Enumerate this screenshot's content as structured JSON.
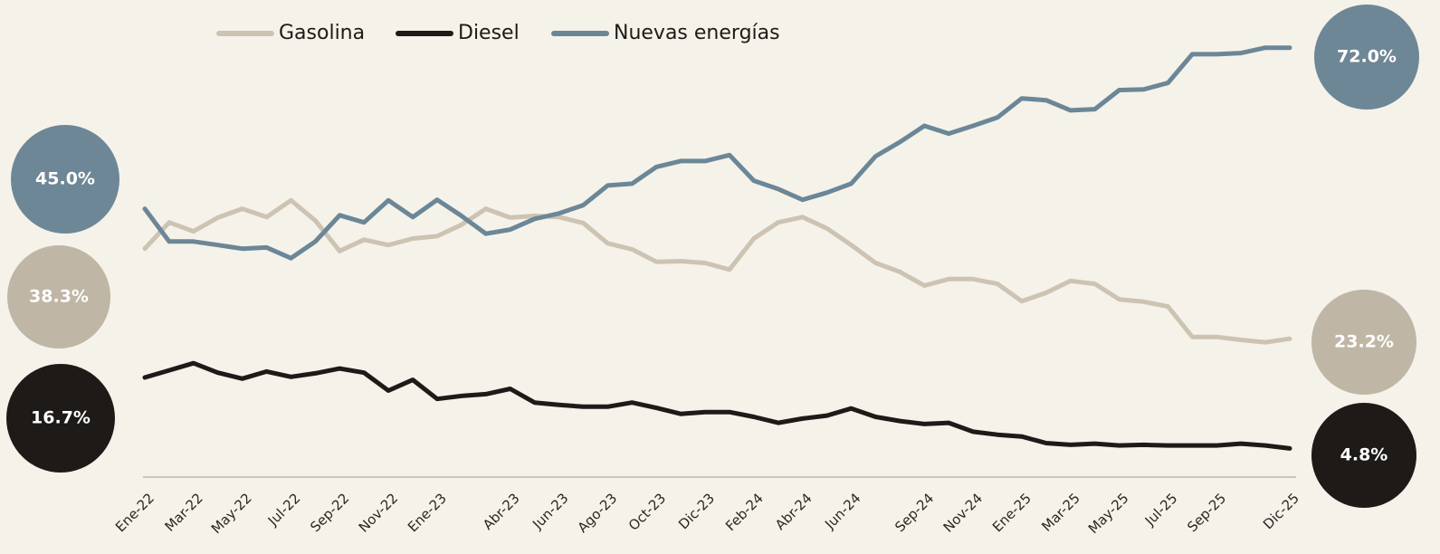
{
  "chart_data": {
    "type": "line",
    "categories": [
      "Ene-22",
      null,
      "Mar-22",
      null,
      "May-22",
      null,
      "Jul-22",
      null,
      "Sep-22",
      null,
      "Nov-22",
      null,
      "Ene-23",
      null,
      null,
      "Abr-23",
      null,
      "Jun-23",
      null,
      "Ago-23",
      null,
      "Oct-23",
      null,
      "Dic-23",
      null,
      "Feb-24",
      null,
      "Abr-24",
      null,
      "Jun-24",
      null,
      null,
      "Sep-24",
      null,
      "Nov-24",
      null,
      "Ene-25",
      null,
      "Mar-25",
      null,
      "May-25",
      null,
      "Jul-25",
      null,
      "Sep-25",
      null,
      null,
      "Dic-25"
    ],
    "ylim": [
      0,
      80
    ],
    "legend": "top",
    "series": [
      {
        "name": "Gasolina",
        "color": "#cdc3b2",
        "bubble_color": "#bfb6a5",
        "values": [
          38.3,
          42.7,
          41.2,
          43.5,
          45.0,
          43.6,
          46.4,
          43.0,
          37.9,
          39.8,
          38.9,
          40.0,
          40.4,
          42.3,
          45.0,
          43.5,
          43.8,
          43.6,
          42.6,
          39.2,
          38.2,
          36.1,
          36.2,
          35.9,
          34.8,
          40.0,
          42.7,
          43.6,
          41.7,
          38.9,
          35.9,
          34.4,
          32.1,
          33.2,
          33.2,
          32.4,
          29.5,
          30.9,
          32.9,
          32.4,
          29.8,
          29.4,
          28.6,
          23.5,
          23.5,
          23.0,
          22.6,
          23.2
        ],
        "value_labels": [
          "38.3%",
          null,
          null,
          null,
          null,
          null,
          null,
          null,
          null,
          null,
          null,
          null,
          null,
          null,
          null,
          null,
          null,
          null,
          null,
          null,
          null,
          null,
          null,
          null,
          null,
          null,
          null,
          null,
          null,
          null,
          null,
          null,
          null,
          null,
          null,
          null,
          null,
          null,
          null,
          null,
          null,
          null,
          null,
          null,
          null,
          null,
          null,
          "23.2%"
        ]
      },
      {
        "name": "Diesel",
        "color": "#1e1a17",
        "bubble_color": "#1e1a17",
        "values": [
          16.7,
          17.9,
          19.1,
          17.5,
          16.5,
          17.7,
          16.8,
          17.4,
          18.2,
          17.5,
          14.5,
          16.3,
          13.1,
          13.6,
          13.9,
          14.8,
          12.5,
          12.1,
          11.8,
          11.8,
          12.5,
          11.6,
          10.6,
          10.9,
          10.9,
          10.1,
          9.1,
          9.8,
          10.3,
          11.5,
          10.1,
          9.4,
          8.9,
          9.1,
          7.6,
          7.1,
          6.8,
          5.7,
          5.4,
          5.6,
          5.3,
          5.4,
          5.3,
          5.3,
          5.3,
          5.6,
          5.3,
          4.8
        ],
        "value_labels": [
          "16.7%",
          null,
          null,
          null,
          null,
          null,
          null,
          null,
          null,
          null,
          null,
          null,
          null,
          null,
          null,
          null,
          null,
          null,
          null,
          null,
          null,
          null,
          null,
          null,
          null,
          null,
          null,
          null,
          null,
          null,
          null,
          null,
          null,
          null,
          null,
          null,
          null,
          null,
          null,
          null,
          null,
          null,
          null,
          null,
          null,
          null,
          null,
          "4.8%"
        ]
      },
      {
        "name": "Nuevas energías",
        "color": "#6b8797",
        "bubble_color": "#6e8796",
        "values": [
          45.0,
          39.5,
          39.5,
          38.9,
          38.3,
          38.5,
          36.7,
          39.5,
          43.9,
          42.7,
          46.4,
          43.6,
          46.5,
          43.8,
          40.8,
          41.5,
          43.3,
          44.2,
          45.6,
          48.9,
          49.2,
          52.0,
          53.0,
          53.0,
          54.0,
          49.7,
          48.3,
          46.5,
          47.7,
          49.2,
          53.8,
          56.2,
          58.9,
          57.6,
          58.9,
          60.3,
          63.5,
          63.2,
          61.5,
          61.7,
          64.9,
          65.0,
          66.1,
          70.9,
          70.9,
          71.1,
          72.0,
          72.0
        ],
        "value_labels": [
          "45.0%",
          null,
          null,
          null,
          null,
          null,
          null,
          null,
          null,
          null,
          null,
          null,
          null,
          null,
          null,
          null,
          null,
          null,
          null,
          null,
          null,
          null,
          null,
          null,
          null,
          null,
          null,
          null,
          null,
          null,
          null,
          null,
          null,
          null,
          null,
          null,
          null,
          null,
          null,
          null,
          null,
          null,
          null,
          null,
          null,
          null,
          null,
          "72.0%"
        ]
      }
    ]
  }
}
